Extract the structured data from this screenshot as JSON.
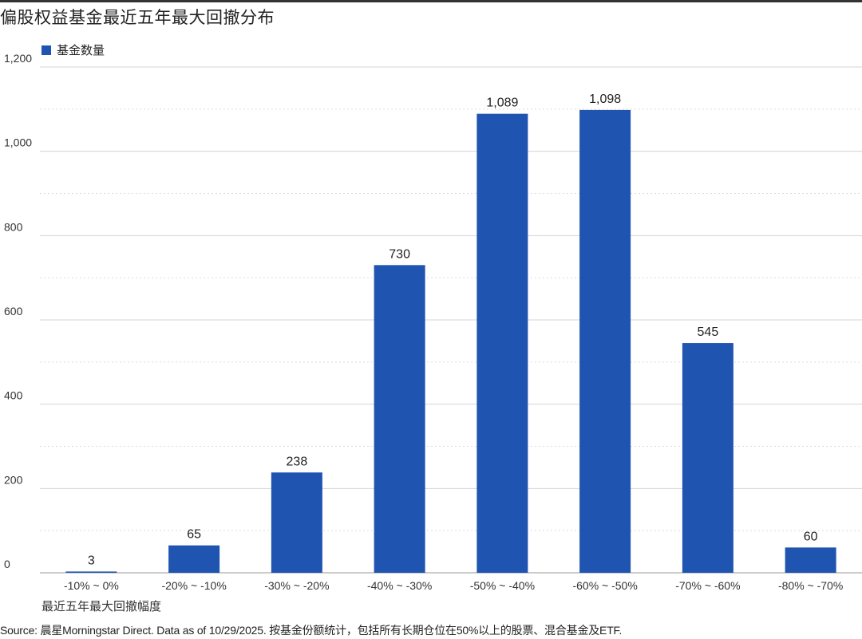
{
  "title": "偏股权益基金最近五年最大回撤分布",
  "legend": {
    "label": "基金数量",
    "color": "#1f55b0"
  },
  "source": "Source: 晨星Morningstar Direct. Data as of 10/29/2025. 按基金份额统计，包括所有长期仓位在50%以上的股票、混合基金及ETF.",
  "chart_data": {
    "type": "bar",
    "title": "偏股权益基金最近五年最大回撤分布",
    "xlabel": "最近五年最大回撤幅度",
    "ylabel": "",
    "ylim": [
      0,
      1200
    ],
    "yticks": [
      0,
      200,
      400,
      600,
      800,
      1000,
      1200
    ],
    "ytick_labels": [
      "0",
      "200",
      "400",
      "600",
      "800",
      "1,000",
      "1,200"
    ],
    "categories": [
      "-10% ~ 0%",
      "-20% ~ -10%",
      "-30% ~ -20%",
      "-40% ~ -30%",
      "-50% ~ -40%",
      "-60% ~ -50%",
      "-70% ~ -60%",
      "-80% ~ -70%"
    ],
    "series": [
      {
        "name": "基金数量",
        "values": [
          3,
          65,
          238,
          730,
          1089,
          1098,
          545,
          60
        ],
        "labels": [
          "3",
          "65",
          "238",
          "730",
          "1,089",
          "1,098",
          "545",
          "60"
        ],
        "color": "#1f55b0"
      }
    ],
    "grid": true,
    "legend_position": "top-left"
  }
}
